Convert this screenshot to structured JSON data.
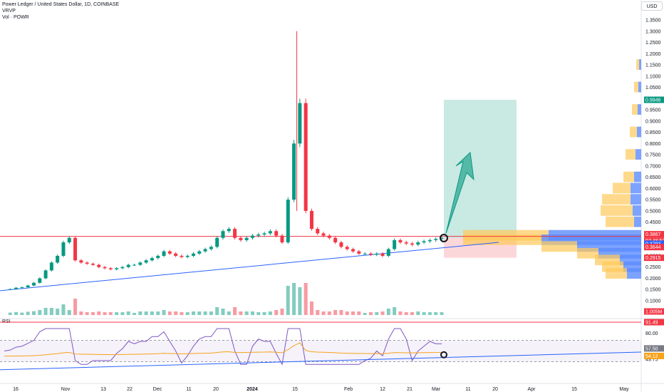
{
  "header": {
    "title": "Power Ledger / United States Dollar, 1D, COINBASE",
    "indicator_vrvp": "VRVP",
    "indicator_vol": "Vol · POWR",
    "currency": "USD",
    "rsi_label": "RSI"
  },
  "chart_data": {
    "type": "candlestick",
    "symbol": "Power Ledger / United States Dollar",
    "interval": "1D",
    "exchange": "COINBASE",
    "x_tick_labels": [
      "16",
      "Nov",
      "13",
      "22",
      "Dec",
      "11",
      "20",
      "2024",
      "15",
      "Feb",
      "12",
      "21",
      "Mar",
      "11",
      "20",
      "Apr",
      "15",
      "May"
    ],
    "y_tick_labels": [
      "1.3500",
      "1.3000",
      "1.2500",
      "1.2000",
      "1.1500",
      "1.1000",
      "1.0500",
      "1.0000",
      "0.9500",
      "0.9000",
      "0.8500",
      "0.8000",
      "0.7500",
      "0.7000",
      "0.6500",
      "0.6000",
      "0.5500",
      "0.5000",
      "0.4500",
      "0.4000",
      "0.3500",
      "0.3000",
      "0.2500",
      "0.2000",
      "0.1500",
      "0.1000"
    ],
    "ylim": [
      0.1,
      1.35
    ],
    "price_series_approx": [
      0.15,
      0.152,
      0.158,
      0.16,
      0.168,
      0.18,
      0.2,
      0.235,
      0.27,
      0.3,
      0.36,
      0.38,
      0.28,
      0.27,
      0.265,
      0.26,
      0.25,
      0.245,
      0.24,
      0.245,
      0.25,
      0.26,
      0.26,
      0.27,
      0.28,
      0.29,
      0.3,
      0.32,
      0.31,
      0.3,
      0.295,
      0.3,
      0.31,
      0.32,
      0.33,
      0.34,
      0.38,
      0.41,
      0.42,
      0.38,
      0.37,
      0.38,
      0.39,
      0.395,
      0.4,
      0.41,
      0.39,
      0.36,
      0.55,
      0.8,
      0.98,
      0.5,
      0.42,
      0.4,
      0.39,
      0.38,
      0.36,
      0.34,
      0.33,
      0.32,
      0.31,
      0.31,
      0.305,
      0.31,
      0.3,
      0.33,
      0.37,
      0.36,
      0.355,
      0.35,
      0.36,
      0.365,
      0.37,
      0.375,
      0.38
    ],
    "horizontal_lines": [
      0.3867
    ],
    "trendline": "ascending support",
    "long_position": {
      "entry": 0.3793,
      "target": 0.9946,
      "stop": 0.2915
    },
    "price_labels": [
      {
        "text": "0.9946",
        "color": "#089981"
      },
      {
        "text": "0.3867",
        "color": "#f23645"
      },
      {
        "text": "07:48:52",
        "color": "#f23645"
      },
      {
        "text": "0.3793",
        "color": "#2962ff"
      },
      {
        "text": "0.3644",
        "color": "#f23645"
      },
      {
        "text": "0.2915",
        "color": "#f23645"
      },
      {
        "text": "1.005M",
        "color": "#f23645"
      }
    ],
    "rsi": {
      "label": "RSI",
      "y_tick_labels": [
        "80.00",
        "57.50",
        "49.75"
      ],
      "tags": [
        {
          "text": "91.49",
          "color": "#f23645"
        },
        {
          "text": "57.50",
          "color": "#787b86"
        },
        {
          "text": "54.12",
          "color": "#f7a21b"
        }
      ],
      "lines": {
        "rsi": "#7e57c2",
        "ma": "#f7a21b",
        "trend": "#2962ff"
      },
      "band": [
        30,
        70
      ]
    },
    "colors": {
      "up": "#089981",
      "down": "#f23645",
      "trendline": "#2962ff",
      "target_zone": "#089981",
      "stop_zone": "#f23645",
      "vrvp_up": "#ffc95a",
      "vrvp_down": "#5b8cff"
    }
  }
}
